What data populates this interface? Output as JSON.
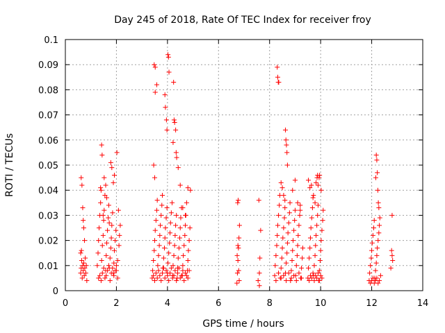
{
  "chart_data": {
    "type": "scatter",
    "title": "Day 245 of 2018, Rate Of TEC Index for receiver froy",
    "xlabel": "GPS time / hours",
    "ylabel": "ROTI / TECUs",
    "xlim": [
      0,
      14
    ],
    "ylim": [
      0,
      0.1
    ],
    "xticks": [
      0,
      2,
      4,
      6,
      8,
      10,
      12,
      14
    ],
    "xtick_labels": [
      "0",
      "2",
      "4",
      "6",
      "8",
      "10",
      "12",
      "14"
    ],
    "yticks": [
      0,
      0.01,
      0.02,
      0.03,
      0.04,
      0.05,
      0.06,
      0.07,
      0.08,
      0.09,
      0.1
    ],
    "ytick_labels": [
      "0",
      "0.01",
      "0.02",
      "0.03",
      "0.04",
      "0.05",
      "0.06",
      "0.07",
      "0.08",
      "0.09",
      "0.1"
    ],
    "grid": true,
    "marker": "+",
    "series": [
      {
        "name": "ROTI",
        "color": "#ff0000",
        "x": [
          0.6,
          0.62,
          0.64,
          0.66,
          0.68,
          0.7,
          0.72,
          0.74,
          0.76,
          0.78,
          0.8,
          0.82,
          0.84,
          0.62,
          0.65,
          0.68,
          0.72,
          0.75,
          0.6,
          0.63,
          0.7,
          1.25,
          1.28,
          1.3,
          1.32,
          1.35,
          1.38,
          1.4,
          1.42,
          1.45,
          1.48,
          1.5,
          1.52,
          1.55,
          1.58,
          1.6,
          1.62,
          1.65,
          1.68,
          1.7,
          1.72,
          1.75,
          1.78,
          1.8,
          1.82,
          1.85,
          1.88,
          1.9,
          1.92,
          1.95,
          1.98,
          2.0,
          2.05,
          2.1,
          2.12,
          2.15,
          1.3,
          1.35,
          1.4,
          1.45,
          1.5,
          1.55,
          1.6,
          1.65,
          1.7,
          1.75,
          1.8,
          1.85,
          1.9,
          1.95,
          2.0,
          2.05,
          1.42,
          1.44,
          1.52,
          1.58,
          1.62,
          1.78,
          1.82,
          1.88,
          1.92,
          2.02,
          2.08,
          1.38,
          1.48,
          1.72,
          3.4,
          3.42,
          3.45,
          3.48,
          3.5,
          3.52,
          3.55,
          3.58,
          3.6,
          3.62,
          3.65,
          3.68,
          3.7,
          3.72,
          3.75,
          3.78,
          3.8,
          3.82,
          3.85,
          3.88,
          3.9,
          3.92,
          3.95,
          3.98,
          4.0,
          4.02,
          4.05,
          4.08,
          4.1,
          4.12,
          4.15,
          4.18,
          4.2,
          4.22,
          4.25,
          4.28,
          4.3,
          4.32,
          4.35,
          4.38,
          4.4,
          4.42,
          4.45,
          4.48,
          4.5,
          4.52,
          4.55,
          4.58,
          4.6,
          4.62,
          4.65,
          4.68,
          4.7,
          4.72,
          4.75,
          4.78,
          4.8,
          4.82,
          4.85,
          4.88,
          4.9,
          3.45,
          3.5,
          3.55,
          3.6,
          3.65,
          3.7,
          3.75,
          3.8,
          3.85,
          3.9,
          3.95,
          4.0,
          4.05,
          4.1,
          4.15,
          4.2,
          4.25,
          4.3,
          4.35,
          4.4,
          4.45,
          4.5,
          4.55,
          4.6,
          4.65,
          4.7,
          4.75,
          4.8,
          4.85,
          3.48,
          3.52,
          3.58,
          3.9,
          3.92,
          3.96,
          3.98,
          4.02,
          4.04,
          4.06,
          4.22,
          4.24,
          4.26,
          4.28,
          4.32,
          4.34,
          4.36,
          4.42,
          3.5,
          3.52,
          3.46,
          4.5,
          4.6,
          4.7,
          4.8,
          6.72,
          6.74,
          6.76,
          6.78,
          6.8,
          6.82,
          6.75,
          6.77,
          6.79,
          6.73,
          6.81,
          6.76,
          7.55,
          7.6,
          7.62,
          7.65,
          7.58,
          7.6,
          8.2,
          8.22,
          8.25,
          8.28,
          8.3,
          8.32,
          8.35,
          8.38,
          8.4,
          8.42,
          8.45,
          8.48,
          8.5,
          8.52,
          8.55,
          8.58,
          8.6,
          8.62,
          8.65,
          8.68,
          8.7,
          8.72,
          8.75,
          8.78,
          8.8,
          8.82,
          8.85,
          8.88,
          8.9,
          8.92,
          8.95,
          8.98,
          9.0,
          9.02,
          9.05,
          9.08,
          9.1,
          9.12,
          9.15,
          9.18,
          9.2,
          9.22,
          9.25,
          9.28,
          9.3,
          8.3,
          8.32,
          8.34,
          8.36,
          8.62,
          8.64,
          8.66,
          8.68,
          8.7,
          8.45,
          8.5,
          8.55,
          8.6,
          8.9,
          9.0,
          9.1,
          9.2,
          8.25,
          8.35,
          8.45,
          8.55,
          8.65,
          8.75,
          8.85,
          8.95,
          9.05,
          9.15,
          9.25,
          9.5,
          9.52,
          9.55,
          9.58,
          9.6,
          9.62,
          9.65,
          9.68,
          9.7,
          9.72,
          9.75,
          9.78,
          9.8,
          9.82,
          9.85,
          9.88,
          9.9,
          9.92,
          9.95,
          9.98,
          10.0,
          10.02,
          10.05,
          10.08,
          10.1,
          9.55,
          9.6,
          9.65,
          9.7,
          9.75,
          9.8,
          9.85,
          9.9,
          9.95,
          10.0,
          10.05,
          9.52,
          9.58,
          9.64,
          9.72,
          9.78,
          9.82,
          9.88,
          9.94,
          10.02,
          9.86,
          9.9,
          9.96,
          11.9,
          11.92,
          11.95,
          11.98,
          12.0,
          12.02,
          12.05,
          12.08,
          12.1,
          12.12,
          12.15,
          12.18,
          12.2,
          12.22,
          12.25,
          12.28,
          12.3,
          12.32,
          12.35,
          11.95,
          12.0,
          12.05,
          12.1,
          12.15,
          12.2,
          12.25,
          12.3,
          12.18,
          12.2,
          12.22,
          12.16,
          12.24,
          12.26,
          12.28,
          12.75,
          12.78,
          12.8,
          12.82,
          12.8
        ],
        "y": [
          0.007,
          0.009,
          0.012,
          0.005,
          0.01,
          0.008,
          0.011,
          0.006,
          0.009,
          0.013,
          0.007,
          0.01,
          0.004,
          0.045,
          0.042,
          0.033,
          0.025,
          0.02,
          0.015,
          0.016,
          0.028,
          0.01,
          0.015,
          0.02,
          0.025,
          0.03,
          0.035,
          0.04,
          0.012,
          0.018,
          0.022,
          0.028,
          0.032,
          0.038,
          0.008,
          0.014,
          0.019,
          0.024,
          0.029,
          0.034,
          0.009,
          0.013,
          0.017,
          0.021,
          0.026,
          0.031,
          0.007,
          0.011,
          0.016,
          0.02,
          0.024,
          0.008,
          0.012,
          0.018,
          0.022,
          0.026,
          0.005,
          0.006,
          0.004,
          0.007,
          0.009,
          0.005,
          0.006,
          0.008,
          0.01,
          0.004,
          0.007,
          0.009,
          0.006,
          0.008,
          0.01,
          0.005,
          0.058,
          0.054,
          0.045,
          0.042,
          0.037,
          0.051,
          0.049,
          0.043,
          0.046,
          0.055,
          0.032,
          0.041,
          0.03,
          0.027,
          0.005,
          0.008,
          0.012,
          0.016,
          0.02,
          0.024,
          0.028,
          0.032,
          0.036,
          0.01,
          0.014,
          0.018,
          0.022,
          0.026,
          0.03,
          0.034,
          0.038,
          0.009,
          0.013,
          0.017,
          0.021,
          0.025,
          0.029,
          0.033,
          0.007,
          0.011,
          0.015,
          0.019,
          0.023,
          0.027,
          0.031,
          0.035,
          0.006,
          0.01,
          0.014,
          0.018,
          0.022,
          0.026,
          0.03,
          0.005,
          0.009,
          0.013,
          0.017,
          0.021,
          0.025,
          0.029,
          0.033,
          0.006,
          0.01,
          0.014,
          0.018,
          0.022,
          0.026,
          0.03,
          0.035,
          0.008,
          0.012,
          0.016,
          0.02,
          0.025,
          0.04,
          0.006,
          0.004,
          0.007,
          0.005,
          0.008,
          0.006,
          0.004,
          0.007,
          0.009,
          0.005,
          0.008,
          0.006,
          0.004,
          0.007,
          0.009,
          0.005,
          0.006,
          0.008,
          0.004,
          0.007,
          0.009,
          0.005,
          0.006,
          0.008,
          0.004,
          0.007,
          0.006,
          0.005,
          0.008,
          0.09,
          0.089,
          0.082,
          0.078,
          0.073,
          0.068,
          0.064,
          0.094,
          0.093,
          0.087,
          0.059,
          0.083,
          0.068,
          0.067,
          0.064,
          0.055,
          0.053,
          0.049,
          0.045,
          0.079,
          0.05,
          0.042,
          0.033,
          0.03,
          0.041,
          0.003,
          0.007,
          0.012,
          0.017,
          0.021,
          0.026,
          0.035,
          0.036,
          0.008,
          0.014,
          0.004,
          0.018,
          0.004,
          0.007,
          0.013,
          0.024,
          0.036,
          0.002,
          0.006,
          0.01,
          0.014,
          0.018,
          0.022,
          0.026,
          0.03,
          0.034,
          0.038,
          0.005,
          0.009,
          0.013,
          0.017,
          0.021,
          0.025,
          0.029,
          0.033,
          0.007,
          0.011,
          0.015,
          0.019,
          0.023,
          0.027,
          0.031,
          0.035,
          0.004,
          0.008,
          0.012,
          0.016,
          0.02,
          0.024,
          0.028,
          0.032,
          0.006,
          0.01,
          0.014,
          0.018,
          0.022,
          0.026,
          0.03,
          0.034,
          0.005,
          0.009,
          0.013,
          0.017,
          0.089,
          0.085,
          0.083,
          0.083,
          0.064,
          0.06,
          0.058,
          0.055,
          0.05,
          0.043,
          0.041,
          0.038,
          0.036,
          0.04,
          0.044,
          0.035,
          0.032,
          0.004,
          0.007,
          0.005,
          0.006,
          0.004,
          0.007,
          0.005,
          0.006,
          0.004,
          0.007,
          0.005,
          0.005,
          0.009,
          0.013,
          0.017,
          0.021,
          0.025,
          0.029,
          0.033,
          0.037,
          0.006,
          0.01,
          0.014,
          0.018,
          0.022,
          0.026,
          0.03,
          0.034,
          0.004,
          0.008,
          0.012,
          0.016,
          0.02,
          0.024,
          0.028,
          0.032,
          0.004,
          0.006,
          0.005,
          0.007,
          0.004,
          0.006,
          0.005,
          0.007,
          0.004,
          0.006,
          0.005,
          0.044,
          0.041,
          0.042,
          0.038,
          0.035,
          0.043,
          0.046,
          0.045,
          0.04,
          0.045,
          0.042,
          0.046,
          0.004,
          0.007,
          0.01,
          0.013,
          0.016,
          0.019,
          0.022,
          0.025,
          0.028,
          0.005,
          0.008,
          0.011,
          0.014,
          0.017,
          0.02,
          0.023,
          0.026,
          0.029,
          0.006,
          0.003,
          0.004,
          0.005,
          0.003,
          0.004,
          0.005,
          0.003,
          0.004,
          0.054,
          0.052,
          0.047,
          0.045,
          0.04,
          0.035,
          0.033,
          0.009,
          0.016,
          0.014,
          0.012,
          0.03
        ]
      }
    ]
  }
}
